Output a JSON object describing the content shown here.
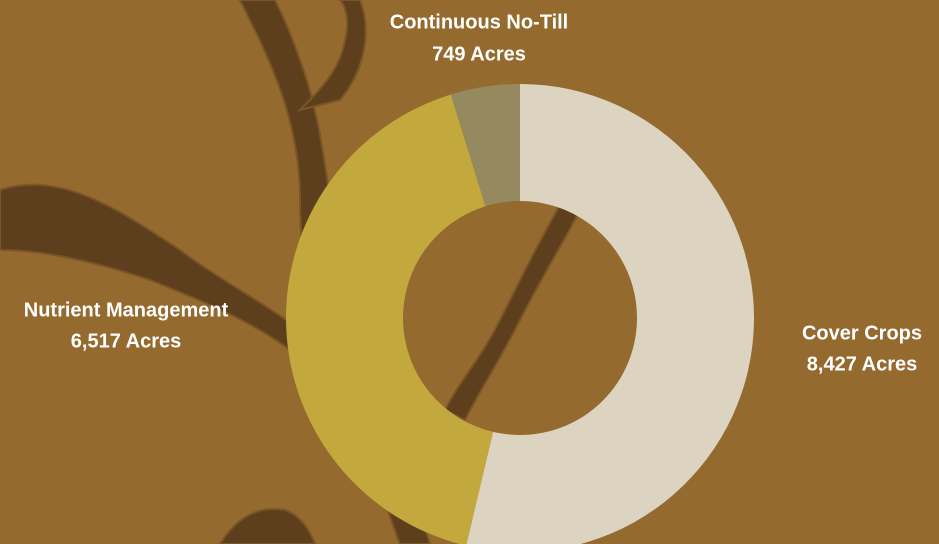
{
  "chart_data": {
    "type": "donut",
    "categories": [
      "Cover Crops",
      "Nutrient Management",
      "Continuous No-Till"
    ],
    "values": [
      8427,
      6517,
      749
    ],
    "value_labels": [
      "8,427 Acres",
      "6,517 Acres",
      "749 Acres"
    ],
    "colors": [
      "#dcd4c1",
      "#c3a83e",
      "#958960"
    ]
  }
}
